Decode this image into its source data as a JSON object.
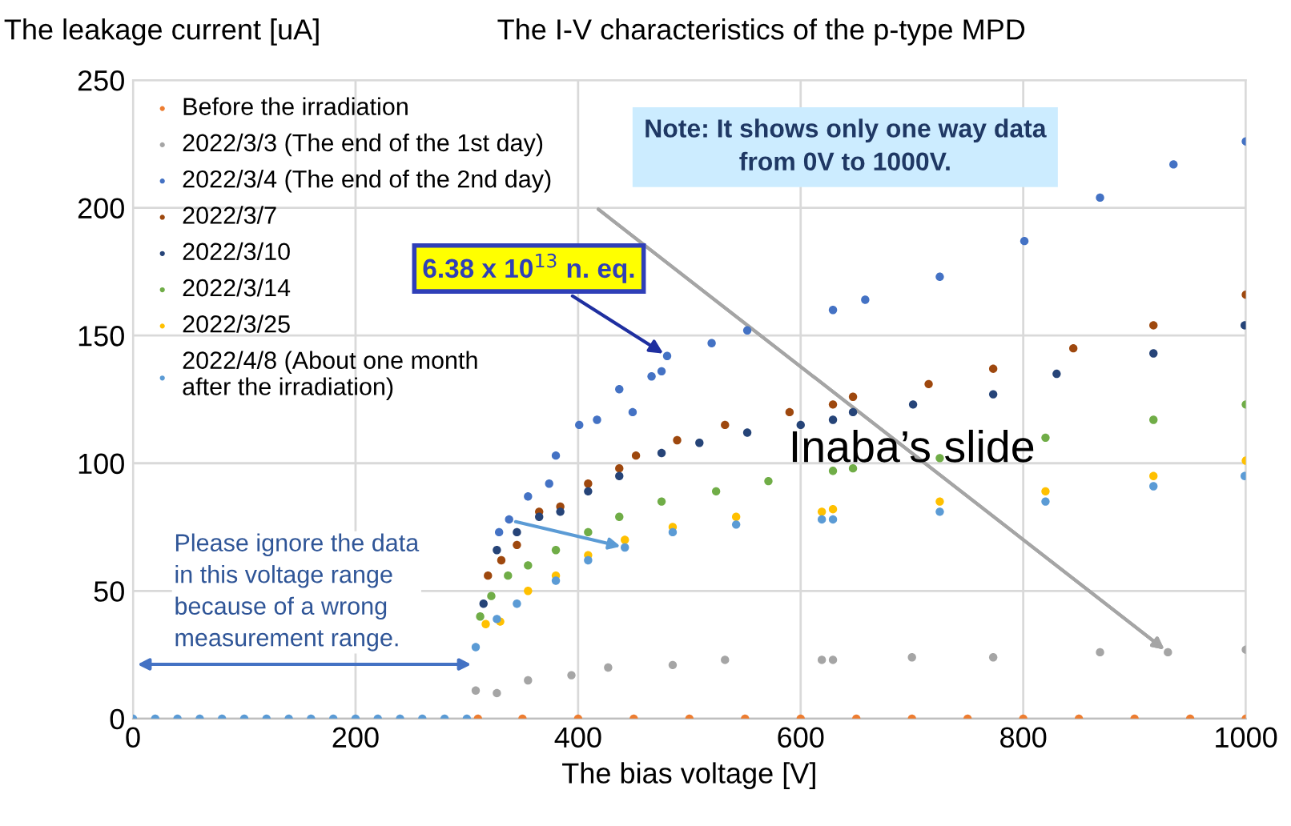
{
  "chart_data": {
    "type": "scatter",
    "title": "The I-V characteristics of the p-type MPD",
    "ylabel": "The leakage current [uA]",
    "xlabel": "The bias voltage [V]",
    "xlim": [
      0,
      1000
    ],
    "xticks": [
      0,
      200,
      400,
      600,
      800,
      1000
    ],
    "ylim": [
      0,
      250
    ],
    "yticks": [
      0,
      50,
      100,
      150,
      200,
      250
    ],
    "grid": true,
    "legend": "top left",
    "marker": "circle",
    "series": [
      {
        "name": "Before the irradiation",
        "color": "#ed7d31",
        "x": [
          310,
          350,
          400,
          450,
          500,
          550,
          600,
          650,
          700,
          750,
          800,
          850,
          900,
          950,
          1000
        ],
        "values": [
          0,
          0,
          0,
          0,
          0,
          0,
          0,
          0,
          0,
          0,
          0,
          0,
          0,
          0,
          0
        ]
      },
      {
        "name": "2022/3/3 (The end of the 1st day)",
        "color": "#a5a5a5",
        "x": [
          308,
          327,
          355,
          394,
          427,
          485,
          532,
          619,
          629,
          700,
          773,
          869,
          930,
          1000
        ],
        "values": [
          11,
          10,
          15,
          17,
          20,
          21,
          23,
          23,
          23,
          24,
          24,
          26,
          26,
          27
        ]
      },
      {
        "name": "2022/3/4 (The end of the 2nd day)",
        "color": "#4472c4",
        "x": [
          329,
          338,
          355,
          374,
          380,
          401,
          417,
          437,
          449,
          466,
          475,
          480,
          520,
          552,
          629,
          658,
          725,
          801,
          869,
          935,
          1000
        ],
        "values": [
          73,
          78,
          87,
          92,
          103,
          115,
          117,
          129,
          120,
          134,
          136,
          142,
          147,
          152,
          160,
          164,
          173,
          187,
          204,
          217,
          226
        ]
      },
      {
        "name": "2022/3/7",
        "color": "#9e480e",
        "x": [
          319,
          331,
          345,
          365,
          384,
          409,
          437,
          452,
          489,
          532,
          590,
          629,
          647,
          715,
          773,
          845,
          917,
          1000
        ],
        "values": [
          56,
          62,
          68,
          81,
          83,
          92,
          98,
          103,
          109,
          115,
          120,
          123,
          126,
          131,
          137,
          145,
          154,
          166
        ]
      },
      {
        "name": "2022/3/10",
        "color": "#264478",
        "x": [
          315,
          327,
          345,
          365,
          384,
          409,
          437,
          475,
          509,
          552,
          600,
          629,
          647,
          701,
          773,
          830,
          917,
          999
        ],
        "values": [
          45,
          66,
          73,
          79,
          81,
          89,
          95,
          104,
          108,
          112,
          115,
          117,
          120,
          123,
          127,
          135,
          143,
          154
        ]
      },
      {
        "name": "2022/3/14",
        "color": "#70ad47",
        "x": [
          312,
          322,
          337,
          355,
          380,
          409,
          437,
          475,
          524,
          571,
          629,
          647,
          725,
          820,
          917,
          1000
        ],
        "values": [
          40,
          48,
          56,
          60,
          66,
          73,
          79,
          85,
          89,
          93,
          97,
          98,
          102,
          110,
          117,
          123
        ]
      },
      {
        "name": "2022/3/25",
        "color": "#ffc000",
        "x": [
          317,
          330,
          355,
          380,
          409,
          442,
          485,
          542,
          619,
          629,
          725,
          820,
          917,
          1000
        ],
        "values": [
          37,
          38,
          50,
          56,
          64,
          70,
          75,
          79,
          81,
          82,
          85,
          89,
          95,
          101
        ]
      },
      {
        "name": "2022/4/8 (About one month\nafter the irradiation)",
        "color": "#5b9bd5",
        "x": [
          0,
          20,
          40,
          60,
          80,
          100,
          120,
          140,
          160,
          180,
          200,
          220,
          240,
          260,
          280,
          300,
          308,
          327,
          345,
          380,
          409,
          442,
          485,
          542,
          619,
          629,
          725,
          820,
          917,
          999
        ],
        "values": [
          0,
          0,
          0,
          0,
          0,
          0,
          0,
          0,
          0,
          0,
          0,
          0,
          0,
          0,
          0,
          0,
          28,
          39,
          45,
          54,
          62,
          67,
          73,
          76,
          78,
          78,
          81,
          85,
          91,
          95
        ]
      }
    ],
    "annotations": [
      "Note: It shows only one way data\nfrom 0V to 1000V.",
      {
        "text": "6.38 x 10$^{13}$ n. eq.",
        "x": 480,
        "y": 142
      },
      "Please ignore the data\nin this voltage range\nbecause of a wrong\nmeasurement range.",
      "Inaba’s slide"
    ]
  }
}
